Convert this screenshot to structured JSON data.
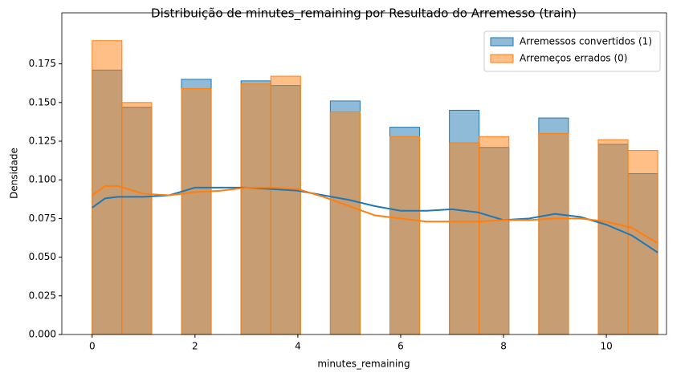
{
  "chart_data": {
    "type": "histogram",
    "title": "Distribuição de minutes_remaining por Resultado do Arremesso (train)",
    "xlabel": "minutes_remaining",
    "ylabel": "Densidade",
    "bins": [
      0,
      0.5789,
      1.1579,
      1.7368,
      2.3158,
      2.8947,
      3.4737,
      4.0526,
      4.6316,
      5.2105,
      5.7895,
      6.3684,
      6.9474,
      7.5263,
      8.1053,
      8.6842,
      9.2632,
      9.8421,
      10.4211,
      11
    ],
    "kde_x": [
      0,
      0.25,
      0.5,
      1,
      1.5,
      2,
      2.5,
      3,
      3.5,
      4,
      4.5,
      5,
      5.5,
      6,
      6.5,
      7,
      7.5,
      8,
      8.5,
      9,
      9.5,
      10,
      10.5,
      11
    ],
    "series": [
      {
        "name": "Arremessos convertidos (1)",
        "color": "#1f77b4",
        "values": [
          0.171,
          0.147,
          0,
          0.165,
          0,
          0.164,
          0.161,
          0,
          0.151,
          0,
          0.134,
          0,
          0.145,
          0.121,
          0,
          0.14,
          0,
          0.123,
          0.104
        ],
        "kde": [
          0.082,
          0.088,
          0.089,
          0.089,
          0.09,
          0.095,
          0.095,
          0.095,
          0.094,
          0.093,
          0.09,
          0.087,
          0.083,
          0.08,
          0.08,
          0.081,
          0.079,
          0.074,
          0.075,
          0.078,
          0.076,
          0.071,
          0.064,
          0.053
        ]
      },
      {
        "name": "Arremeços errados (0)",
        "color": "#ff7f0e",
        "values": [
          0.19,
          0.15,
          0,
          0.159,
          0,
          0.162,
          0.167,
          0,
          0.144,
          0,
          0.128,
          0,
          0.124,
          0.128,
          0,
          0.13,
          0,
          0.126,
          0.119
        ],
        "kde": [
          0.09,
          0.096,
          0.096,
          0.091,
          0.09,
          0.092,
          0.093,
          0.095,
          0.095,
          0.094,
          0.089,
          0.083,
          0.077,
          0.075,
          0.073,
          0.073,
          0.073,
          0.074,
          0.074,
          0.075,
          0.075,
          0.073,
          0.069,
          0.059
        ]
      }
    ],
    "xlim": [
      -0.59,
      11.17
    ],
    "ylim": [
      0,
      0.208
    ],
    "xticks": [
      0,
      2,
      4,
      6,
      8,
      10
    ],
    "yticks": [
      {
        "value": 0,
        "label": "0.000"
      },
      {
        "value": 0.025,
        "label": "0.025"
      },
      {
        "value": 0.05,
        "label": "0.050"
      },
      {
        "value": 0.075,
        "label": "0.075"
      },
      {
        "value": 0.1,
        "label": "0.100"
      },
      {
        "value": 0.125,
        "label": "0.125"
      },
      {
        "value": 0.15,
        "label": "0.150"
      },
      {
        "value": 0.175,
        "label": "0.175"
      }
    ],
    "legend": "upper right"
  }
}
